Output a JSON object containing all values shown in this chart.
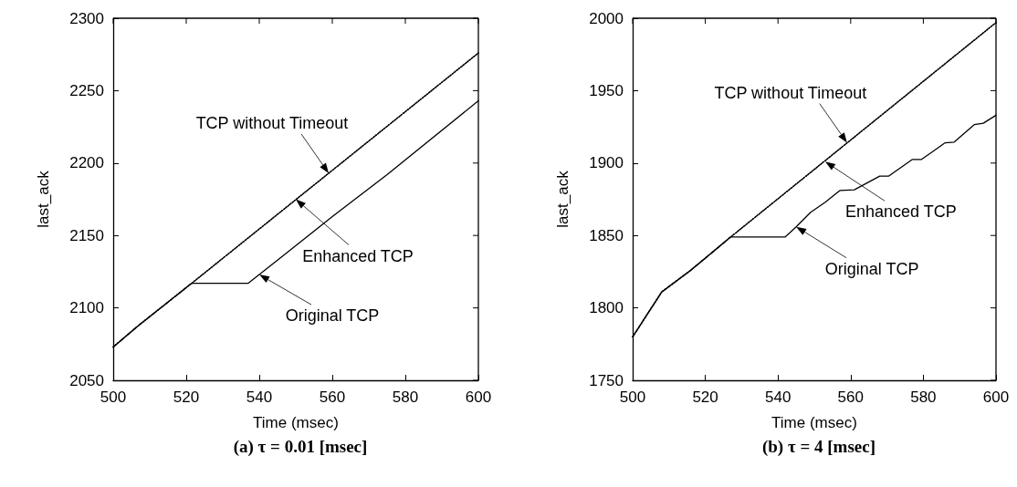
{
  "chart_data": [
    {
      "type": "line",
      "title": "(a) τ = 0.01 [msec]",
      "xlabel": "Time (msec)",
      "ylabel": "last_ack",
      "xlim": [
        500,
        600
      ],
      "xticks": [
        500,
        520,
        540,
        560,
        580,
        600
      ],
      "ylim": [
        2050,
        2300
      ],
      "yticks": [
        2050,
        2100,
        2150,
        2200,
        2250,
        2300
      ],
      "grid": false,
      "series": [
        {
          "color": "#000000",
          "line_style": "dotted",
          "x": [
            500,
            507,
            514,
            521.5,
            600
          ],
          "values": [
            2073,
            2088,
            2102,
            2117,
            2276
          ]
        },
        {
          "color": "#000000",
          "line_style": "dotted",
          "x": [
            500,
            507,
            514,
            521.5,
            600
          ],
          "values": [
            2073,
            2088,
            2102,
            2117,
            2276
          ]
        },
        {
          "color": "#000000",
          "line_style": "solid",
          "x": [
            500,
            507,
            514,
            521.5,
            537,
            545,
            560,
            575,
            600
          ],
          "values": [
            2073,
            2088,
            2102,
            2117,
            2117,
            2133,
            2163,
            2192,
            2243
          ]
        }
      ],
      "annotations": [
        {
          "text": "TCP without Timeout",
          "x": 559,
          "y": 2193
        },
        {
          "text": "Enhanced TCP",
          "x": 550,
          "y": 2175
        },
        {
          "text": "Original TCP",
          "x": 540,
          "y": 2123
        }
      ]
    },
    {
      "type": "line",
      "title": "(b) τ = 4 [msec]",
      "xlabel": "Time (msec)",
      "ylabel": "last_ack",
      "xlim": [
        500,
        600
      ],
      "xticks": [
        500,
        520,
        540,
        560,
        580,
        600
      ],
      "ylim": [
        1750,
        2000
      ],
      "yticks": [
        1750,
        1800,
        1850,
        1900,
        1950,
        2000
      ],
      "grid": false,
      "series": [
        {
          "color": "#000000",
          "line_style": "dotted",
          "x": [
            500,
            508,
            516,
            527,
            600
          ],
          "values": [
            1780,
            1811,
            1826,
            1849,
            1997
          ]
        },
        {
          "color": "#000000",
          "line_style": "dotted",
          "x": [
            500,
            508,
            516,
            527,
            600
          ],
          "values": [
            1780,
            1811,
            1826,
            1849,
            1997
          ]
        },
        {
          "color": "#000000",
          "line_style": "solid",
          "x": [
            500,
            508,
            516,
            527,
            542,
            545,
            549,
            553,
            557,
            561,
            568,
            570.5,
            577,
            579.5,
            586,
            588.5,
            594,
            596.5,
            600
          ],
          "values": [
            1780,
            1811,
            1826,
            1849,
            1849,
            1856,
            1866,
            1873,
            1881,
            1881.5,
            1891,
            1891,
            1902.5,
            1902.5,
            1914,
            1914.5,
            1926.5,
            1927.5,
            1933
          ]
        }
      ],
      "annotations": [
        {
          "text": "TCP without Timeout",
          "x": 559,
          "y": 1914
        },
        {
          "text": "Enhanced TCP",
          "x": 553,
          "y": 1901
        },
        {
          "text": "Original TCP",
          "x": 545,
          "y": 1856
        }
      ]
    }
  ]
}
